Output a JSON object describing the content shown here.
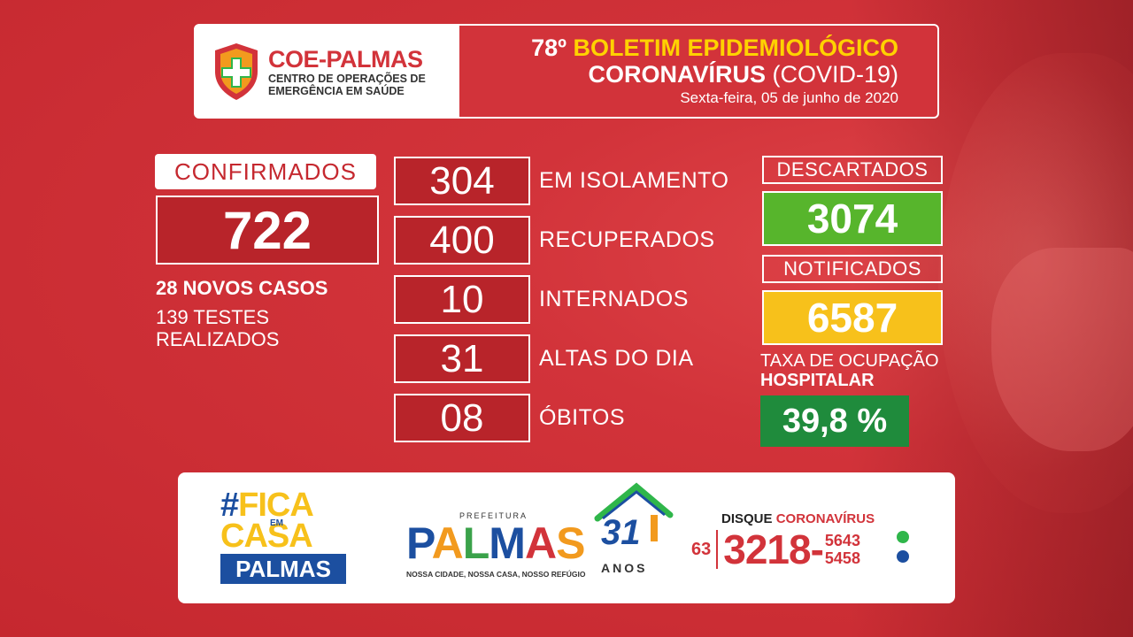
{
  "header": {
    "logo_title": "COE-PALMAS",
    "logo_sub1": "CENTRO DE OPERAÇÕES DE",
    "logo_sub2": "EMERGÊNCIA EM SAÚDE",
    "bulletin_num": "78º",
    "bulletin_word": "BOLETIM EPIDEMIOLÓGICO",
    "corona_bold": "CORONAVÍRUS",
    "corona_rest": "(COVID-19)",
    "date": "Sexta-feira, 05 de junho de 2020"
  },
  "confirmados": {
    "label": "CONFIRMADOS",
    "value": "722",
    "new_cases": "28 NOVOS CASOS",
    "tests_line1": "139 TESTES",
    "tests_line2": "REALIZADOS"
  },
  "stats": [
    {
      "value": "304",
      "label": "EM ISOLAMENTO"
    },
    {
      "value": "400",
      "label": "RECUPERADOS"
    },
    {
      "value": "10",
      "label": "INTERNADOS"
    },
    {
      "value": "31",
      "label": "ALTAS DO DIA"
    },
    {
      "value": "08",
      "label": "ÓBITOS"
    }
  ],
  "descartados": {
    "label": "DESCARTADOS",
    "value": "3074"
  },
  "notificados": {
    "label": "NOTIFICADOS",
    "value": "6587"
  },
  "ocupacao": {
    "label1": "TAXA DE OCUPAÇÃO",
    "label2": "HOSPITALAR",
    "value": "39,8 %"
  },
  "footer": {
    "fica_hash": "#",
    "fica_word": "FICA",
    "fica_em": "EM",
    "fica_casa": "CASA",
    "fica_palmas": "PALMAS",
    "prefeitura": "PREFEITURA",
    "palmas_letters": [
      "P",
      "A",
      "L",
      "M",
      "A",
      "S"
    ],
    "slogan": "NOSSA CIDADE, NOSSA CASA, NOSSO REFÚGIO",
    "anos_num": "31",
    "anos_word": "ANOS",
    "disque": "DISQUE",
    "disque_red": "CORONAVÍRUS",
    "ddd": "63",
    "phone_main": "3218-",
    "phone_ext1": "5643",
    "phone_ext2": "5458"
  },
  "colors": {
    "background_red": "#d2333a",
    "green": "#57b52c",
    "yellow": "#f7c11b",
    "dark_green": "#1f8b3c",
    "blue": "#1c4fa0"
  }
}
